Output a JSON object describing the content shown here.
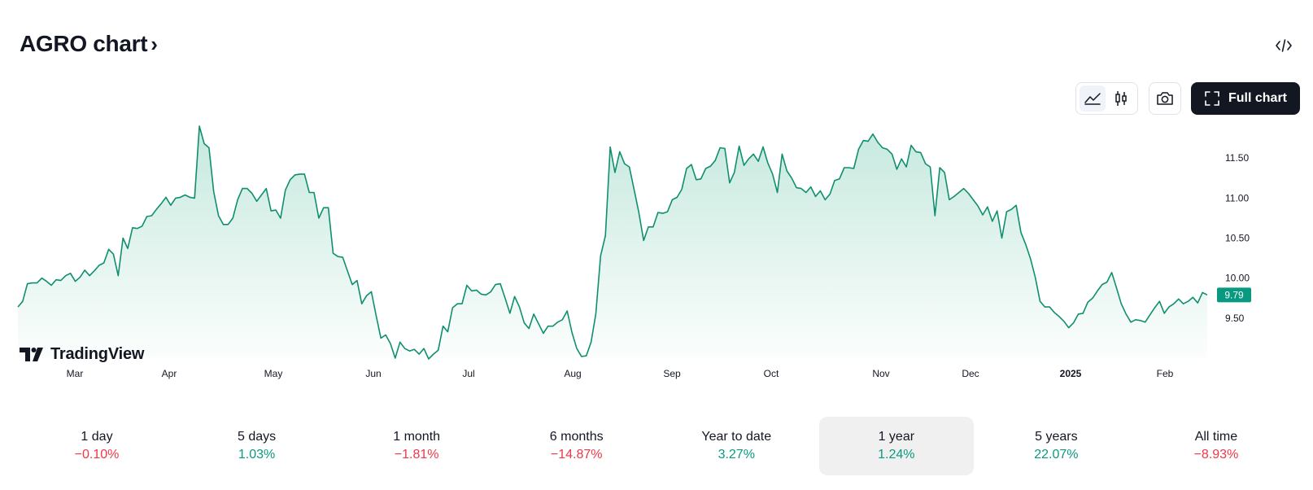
{
  "header": {
    "title": "AGRO chart",
    "title_chevron": "›"
  },
  "toolbar": {
    "full_chart_label": "Full chart",
    "icons": [
      "embed-code-icon",
      "area-chart-icon",
      "candles-icon",
      "camera-icon",
      "fullscreen-icon"
    ],
    "active_style": "area"
  },
  "branding": {
    "name": "TradingView"
  },
  "colors": {
    "line": "#0f8f6f",
    "area_top": "#bfe6da",
    "negative": "#f23645",
    "positive": "#089981",
    "price_tag": "#089981"
  },
  "chart_data": {
    "type": "area",
    "x_tick_labels": [
      "Mar",
      "Apr",
      "May",
      "Jun",
      "Jul",
      "Aug",
      "Sep",
      "Oct",
      "Nov",
      "Dec",
      "2025",
      "Feb"
    ],
    "y_tick_labels": [
      "11.50",
      "11.00",
      "10.50",
      "10.00",
      "9.50"
    ],
    "ylim": [
      9.0,
      11.95
    ],
    "last_price": "9.79",
    "series": [
      {
        "values": [
          9.64,
          9.71,
          9.93,
          9.94,
          9.94,
          10.0,
          9.96,
          9.91,
          9.98,
          9.97,
          10.03,
          10.06,
          9.96,
          10.01,
          10.1,
          10.03,
          10.09,
          10.16,
          10.19,
          10.36,
          10.3,
          10.03,
          10.5,
          10.37,
          10.63,
          10.62,
          10.65,
          10.77,
          10.78,
          10.86,
          10.93,
          11.01,
          10.91,
          11.0,
          11.01,
          11.04,
          11.01,
          11.0,
          11.9,
          11.68,
          11.63,
          11.08,
          10.78,
          10.67,
          10.67,
          10.75,
          10.98,
          11.12,
          11.12,
          11.06,
          10.96,
          11.04,
          11.12,
          10.84,
          10.85,
          10.75,
          11.1,
          11.23,
          11.29,
          11.3,
          11.3,
          11.07,
          11.07,
          10.75,
          10.88,
          10.88,
          10.31,
          10.27,
          10.26,
          10.09,
          9.92,
          9.97,
          9.68,
          9.78,
          9.83,
          9.53,
          9.25,
          9.29,
          9.18,
          9.0,
          9.2,
          9.12,
          9.09,
          9.11,
          9.05,
          9.12,
          8.99,
          9.05,
          9.1,
          9.4,
          9.33,
          9.63,
          9.68,
          9.68,
          9.91,
          9.84,
          9.85,
          9.8,
          9.79,
          9.83,
          9.92,
          9.93,
          9.75,
          9.56,
          9.77,
          9.64,
          9.44,
          9.37,
          9.55,
          9.43,
          9.31,
          9.4,
          9.4,
          9.45,
          9.48,
          9.59,
          9.32,
          9.12,
          9.02,
          9.03,
          9.2,
          9.55,
          10.28,
          10.53,
          11.64,
          11.32,
          11.58,
          11.43,
          11.39,
          11.11,
          10.82,
          10.47,
          10.64,
          10.64,
          10.82,
          10.81,
          10.83,
          10.98,
          11.01,
          11.11,
          11.37,
          11.42,
          11.23,
          11.24,
          11.37,
          11.4,
          11.47,
          11.63,
          11.62,
          11.19,
          11.32,
          11.65,
          11.41,
          11.49,
          11.55,
          11.46,
          11.64,
          11.44,
          11.3,
          11.07,
          11.55,
          11.34,
          11.25,
          11.13,
          11.12,
          11.07,
          11.14,
          11.02,
          11.09,
          10.98,
          11.05,
          11.22,
          11.24,
          11.38,
          11.38,
          11.37,
          11.61,
          11.72,
          11.71,
          11.8,
          11.7,
          11.63,
          11.61,
          11.55,
          11.36,
          11.49,
          11.39,
          11.66,
          11.58,
          11.57,
          11.43,
          11.39,
          10.78,
          11.38,
          11.32,
          10.98,
          11.02,
          11.07,
          11.12,
          11.06,
          10.98,
          10.9,
          10.79,
          10.89,
          10.71,
          10.84,
          10.5,
          10.83,
          10.86,
          10.91,
          10.57,
          10.42,
          10.24,
          10.01,
          9.71,
          9.64,
          9.64,
          9.57,
          9.52,
          9.46,
          9.38,
          9.44,
          9.55,
          9.56,
          9.7,
          9.75,
          9.84,
          9.92,
          9.95,
          10.07,
          9.88,
          9.68,
          9.55,
          9.45,
          9.48,
          9.47,
          9.45,
          9.54,
          9.63,
          9.71,
          9.56,
          9.64,
          9.68,
          9.74,
          9.68,
          9.71,
          9.76,
          9.69,
          9.82,
          9.79
        ]
      }
    ]
  },
  "periods": [
    {
      "label": "1 day",
      "change": "−0.10%",
      "direction": "down"
    },
    {
      "label": "5 days",
      "change": "1.03%",
      "direction": "up"
    },
    {
      "label": "1 month",
      "change": "−1.81%",
      "direction": "down"
    },
    {
      "label": "6 months",
      "change": "−14.87%",
      "direction": "down"
    },
    {
      "label": "Year to date",
      "change": "3.27%",
      "direction": "up"
    },
    {
      "label": "1 year",
      "change": "1.24%",
      "direction": "up",
      "selected": true
    },
    {
      "label": "5 years",
      "change": "22.07%",
      "direction": "up"
    },
    {
      "label": "All time",
      "change": "−8.93%",
      "direction": "down"
    }
  ]
}
